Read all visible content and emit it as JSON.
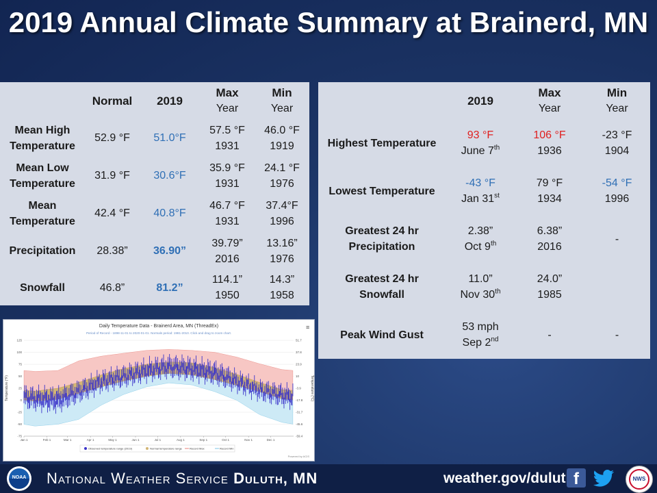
{
  "title": "2019 Annual Climate Summary at Brainerd, MN",
  "left_table": {
    "headers": {
      "normal": "Normal",
      "year": "2019",
      "max": "Max",
      "min": "Min",
      "year_sub": "Year"
    },
    "rows": [
      {
        "label": "Mean High Temperature",
        "normal": "52.9 °F",
        "value": "51.0°F",
        "max_val": "57.5 °F",
        "max_year": "1931",
        "min_val": "46.0 °F",
        "min_year": "1919"
      },
      {
        "label": "Mean Low Temperature",
        "normal": "31.9 °F",
        "value": "30.6°F",
        "max_val": "35.9 °F",
        "max_year": "1931",
        "min_val": "24.1 °F",
        "min_year": "1976"
      },
      {
        "label": "Mean Temperature",
        "normal": "42.4 °F",
        "value": "40.8°F",
        "max_val": "46.7 °F",
        "max_year": "1931",
        "min_val": "37.4°F",
        "min_year": "1996"
      },
      {
        "label": "Precipitation",
        "normal": "28.38”",
        "value": "36.90”",
        "max_val": "39.79”",
        "max_year": "2016",
        "min_val": "13.16”",
        "min_year": "1976"
      },
      {
        "label": "Snowfall",
        "normal": "46.8”",
        "value": "81.2”",
        "max_val": "114.1”",
        "max_year": "1950",
        "min_val": "14.3”",
        "min_year": "1958"
      }
    ]
  },
  "right_table": {
    "headers": {
      "year": "2019",
      "max": "Max",
      "min": "Min",
      "year_sub": "Year"
    },
    "rows": [
      {
        "label": "Highest Temperature",
        "value": "93 °F",
        "date": "June 7",
        "date_sup": "th",
        "max_val": "106 °F",
        "max_year": "1936",
        "min_val": "-23 °F",
        "min_year": "1904"
      },
      {
        "label": "Lowest Temperature",
        "value": "-43 °F",
        "date": "Jan 31",
        "date_sup": "st",
        "max_val": "79 °F",
        "max_year": "1934",
        "min_val": "-54 °F",
        "min_year": "1996"
      },
      {
        "label": "Greatest 24 hr Precipitation",
        "value": "2.38”",
        "date": "Oct 9",
        "date_sup": "th",
        "max_val": "6.38”",
        "max_year": "2016",
        "min_val": "-",
        "min_year": ""
      },
      {
        "label": "Greatest 24 hr Snowfall",
        "value": "11.0”",
        "date": "Nov 30",
        "date_sup": "th",
        "max_val": "24.0”",
        "max_year": "1985",
        "min_val": "",
        "min_year": ""
      },
      {
        "label": "Peak Wind Gust",
        "value": "53 mph",
        "date": "Sep 2",
        "date_sup": "nd",
        "max_val": "-",
        "max_year": "",
        "min_val": "-",
        "min_year": ""
      }
    ]
  },
  "chart_data": {
    "type": "area",
    "title": "Daily Temperature Data - Brainerd Area, MN (ThreadEx)",
    "subtitle": "Period of Record - 1898-11-01 to 2020-01-01. Normals period: 1981-2010. Click and drag to zoom chart.",
    "ylabel_left": "Temperature (°F)",
    "ylabel_right": "Temperature (°C)",
    "y_ticks_left": [
      125,
      100,
      75,
      50,
      25,
      0,
      -25,
      -50,
      -75
    ],
    "y_ticks_right": [
      "51.7",
      "37.8",
      "23.9",
      "10",
      "-3.9",
      "-17.8",
      "-31.7",
      "-45.6",
      "-59.4"
    ],
    "ylim": [
      -75,
      125
    ],
    "x_ticks": [
      "Jan 1",
      "Feb 1",
      "Mar 1",
      "Apr 1",
      "May 1",
      "Jun 1",
      "Jul 1",
      "Aug 1",
      "Sep 1",
      "Oct 1",
      "Nov 1",
      "Dec 1"
    ],
    "legend": [
      "Observed temperature range (2019)",
      "Normal temperature range",
      "Record Max",
      "Record Min"
    ],
    "credit": "Powered by ACIS",
    "monthly_record_max": [
      60,
      62,
      82,
      92,
      98,
      104,
      106,
      104,
      100,
      90,
      76,
      64
    ],
    "monthly_record_min": [
      -54,
      -50,
      -40,
      -10,
      12,
      28,
      36,
      32,
      18,
      0,
      -30,
      -46
    ],
    "monthly_normal_high": [
      19,
      25,
      37,
      53,
      66,
      75,
      80,
      78,
      68,
      54,
      37,
      22
    ],
    "monthly_normal_low": [
      -2,
      2,
      14,
      28,
      40,
      50,
      56,
      53,
      43,
      31,
      18,
      3
    ],
    "monthly_obs_high_2019": [
      16,
      14,
      28,
      50,
      60,
      74,
      82,
      78,
      70,
      50,
      30,
      22
    ],
    "monthly_obs_low_2019": [
      -10,
      -14,
      6,
      28,
      38,
      50,
      58,
      52,
      44,
      28,
      10,
      -2
    ]
  },
  "footer": {
    "nws_prefix": "National Weather Service",
    "office": "Duluth, MN",
    "url": "weather.gov/duluth",
    "noaa_logo": "NOAA",
    "facebook_icon": "f",
    "twitter_icon": "twitter-bird",
    "nws_logo": "NWS"
  },
  "colors": {
    "cold": "#2f6fb5",
    "hot": "#e02020",
    "table_bg": "#d6dbe6"
  }
}
